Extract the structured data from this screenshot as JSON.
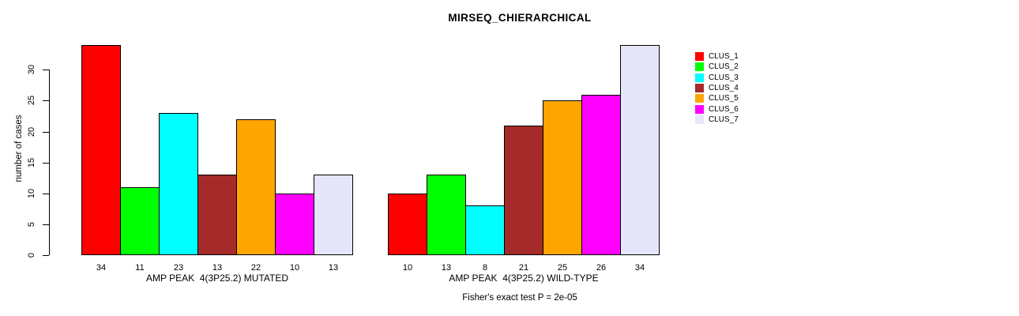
{
  "chart_data": {
    "type": "bar",
    "title": "MIRSEQ_CHIERARCHICAL",
    "ylabel": "number of cases",
    "xlabel": "",
    "ylim": [
      0,
      34
    ],
    "yticks": [
      0,
      5,
      10,
      15,
      20,
      25,
      30
    ],
    "grid": false,
    "legend_position": "right",
    "bar_value_labels_shown": true,
    "categories": [
      "AMP PEAK  4(3P25.2) MUTATED",
      "AMP PEAK  4(3P25.2) WILD-TYPE"
    ],
    "series": [
      {
        "name": "CLUS_1",
        "color": "#FF0000",
        "values": [
          34,
          10
        ]
      },
      {
        "name": "CLUS_2",
        "color": "#00FF00",
        "values": [
          11,
          13
        ]
      },
      {
        "name": "CLUS_3",
        "color": "#00FFFF",
        "values": [
          23,
          8
        ]
      },
      {
        "name": "CLUS_4",
        "color": "#A52A2A",
        "values": [
          13,
          21
        ]
      },
      {
        "name": "CLUS_5",
        "color": "#FFA500",
        "values": [
          22,
          25
        ]
      },
      {
        "name": "CLUS_6",
        "color": "#FF00FF",
        "values": [
          10,
          26
        ]
      },
      {
        "name": "CLUS_7",
        "color": "#E6E6FA",
        "values": [
          13,
          34
        ]
      }
    ],
    "annotation": "Fisher's exact test P = 2e-05"
  },
  "colors": {
    "bar_border": "#000000",
    "axis": "#000000",
    "background": "#FFFFFF"
  }
}
